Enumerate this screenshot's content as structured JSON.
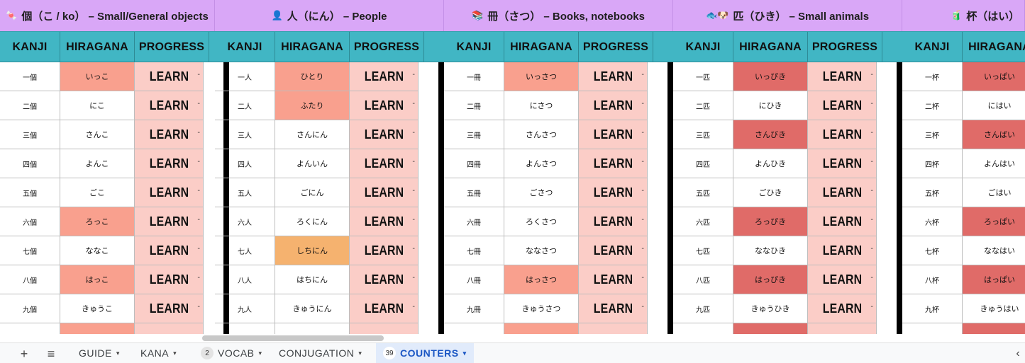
{
  "colors": {
    "section_bg": "#d9a7f7",
    "header_bg": "#41b6c4",
    "progress_bg": "#fbcdc7",
    "hl_salmon": "#f9a08e",
    "hl_red": "#e06b68",
    "hl_orange": "#f5b26f",
    "active_tab": "#1a56c4"
  },
  "sections": [
    {
      "title": "個（こ / ko） – Small/General objects",
      "icon": "candy-icon",
      "icon_glyph": "🍬"
    },
    {
      "title": "人（にん） – People",
      "icon": "person-icon",
      "icon_glyph": "👤"
    },
    {
      "title": "冊（さつ） – Books, notebooks",
      "icon": "books-icon",
      "icon_glyph": "📚"
    },
    {
      "title": "匹（ひき） – Small animals",
      "icon": "fish-dog-icon",
      "icon_glyph": "🐟🐶"
    },
    {
      "title": "杯（はい）",
      "icon": "drink-icon",
      "icon_glyph": "🧃"
    }
  ],
  "headers": {
    "kanji": "KANJI",
    "hiragana": "HIRAGANA",
    "progress": "PROGRESS"
  },
  "learn_label": "LEARN",
  "dash": "-",
  "groups": [
    {
      "rows": [
        {
          "kanji": "一個",
          "hiragana": "いっこ",
          "hl": "salmon"
        },
        {
          "kanji": "二個",
          "hiragana": "にこ",
          "hl": ""
        },
        {
          "kanji": "三個",
          "hiragana": "さんこ",
          "hl": ""
        },
        {
          "kanji": "四個",
          "hiragana": "よんこ",
          "hl": ""
        },
        {
          "kanji": "五個",
          "hiragana": "ごこ",
          "hl": ""
        },
        {
          "kanji": "六個",
          "hiragana": "ろっこ",
          "hl": "salmon"
        },
        {
          "kanji": "七個",
          "hiragana": "ななこ",
          "hl": ""
        },
        {
          "kanji": "八個",
          "hiragana": "はっこ",
          "hl": "salmon"
        },
        {
          "kanji": "九個",
          "hiragana": "きゅうこ",
          "hl": ""
        },
        {
          "kanji": "",
          "hiragana": "",
          "hl": "salmon"
        }
      ]
    },
    {
      "rows": [
        {
          "kanji": "一人",
          "hiragana": "ひとり",
          "hl": "salmon"
        },
        {
          "kanji": "二人",
          "hiragana": "ふたり",
          "hl": "salmon"
        },
        {
          "kanji": "三人",
          "hiragana": "さんにん",
          "hl": ""
        },
        {
          "kanji": "四人",
          "hiragana": "よんいん",
          "hl": ""
        },
        {
          "kanji": "五人",
          "hiragana": "ごにん",
          "hl": ""
        },
        {
          "kanji": "六人",
          "hiragana": "ろくにん",
          "hl": ""
        },
        {
          "kanji": "七人",
          "hiragana": "しちにん",
          "hl": "orange"
        },
        {
          "kanji": "八人",
          "hiragana": "はちにん",
          "hl": ""
        },
        {
          "kanji": "九人",
          "hiragana": "きゅうにん",
          "hl": ""
        },
        {
          "kanji": "",
          "hiragana": "",
          "hl": ""
        }
      ]
    },
    {
      "rows": [
        {
          "kanji": "一冊",
          "hiragana": "いっさつ",
          "hl": "salmon"
        },
        {
          "kanji": "二冊",
          "hiragana": "にさつ",
          "hl": ""
        },
        {
          "kanji": "三冊",
          "hiragana": "さんさつ",
          "hl": ""
        },
        {
          "kanji": "四冊",
          "hiragana": "よんさつ",
          "hl": ""
        },
        {
          "kanji": "五冊",
          "hiragana": "ごさつ",
          "hl": ""
        },
        {
          "kanji": "六冊",
          "hiragana": "ろくさつ",
          "hl": ""
        },
        {
          "kanji": "七冊",
          "hiragana": "ななさつ",
          "hl": ""
        },
        {
          "kanji": "八冊",
          "hiragana": "はっさつ",
          "hl": "salmon"
        },
        {
          "kanji": "九冊",
          "hiragana": "きゅうさつ",
          "hl": ""
        },
        {
          "kanji": "",
          "hiragana": "",
          "hl": "salmon"
        }
      ]
    },
    {
      "rows": [
        {
          "kanji": "一匹",
          "hiragana": "いっぴき",
          "hl": "red"
        },
        {
          "kanji": "二匹",
          "hiragana": "にひき",
          "hl": ""
        },
        {
          "kanji": "三匹",
          "hiragana": "さんびき",
          "hl": "red"
        },
        {
          "kanji": "四匹",
          "hiragana": "よんひき",
          "hl": ""
        },
        {
          "kanji": "五匹",
          "hiragana": "ごひき",
          "hl": ""
        },
        {
          "kanji": "六匹",
          "hiragana": "ろっぴき",
          "hl": "red"
        },
        {
          "kanji": "七匹",
          "hiragana": "ななひき",
          "hl": ""
        },
        {
          "kanji": "八匹",
          "hiragana": "はっぴき",
          "hl": "red"
        },
        {
          "kanji": "九匹",
          "hiragana": "きゅうひき",
          "hl": ""
        },
        {
          "kanji": "",
          "hiragana": "",
          "hl": "red"
        }
      ]
    },
    {
      "rows": [
        {
          "kanji": "一杯",
          "hiragana": "いっぱい",
          "hl": "red"
        },
        {
          "kanji": "二杯",
          "hiragana": "にはい",
          "hl": ""
        },
        {
          "kanji": "三杯",
          "hiragana": "さんばい",
          "hl": "red"
        },
        {
          "kanji": "四杯",
          "hiragana": "よんはい",
          "hl": ""
        },
        {
          "kanji": "五杯",
          "hiragana": "ごはい",
          "hl": ""
        },
        {
          "kanji": "六杯",
          "hiragana": "ろっぱい",
          "hl": "red"
        },
        {
          "kanji": "七杯",
          "hiragana": "ななはい",
          "hl": ""
        },
        {
          "kanji": "八杯",
          "hiragana": "はっぱい",
          "hl": "red"
        },
        {
          "kanji": "九杯",
          "hiragana": "きゅうはい",
          "hl": ""
        },
        {
          "kanji": "",
          "hiragana": "",
          "hl": "red"
        }
      ]
    }
  ],
  "tabbar": {
    "add_icon": "plus-icon",
    "add_glyph": "+",
    "menu_icon": "menu-icon",
    "menu_glyph": "≡",
    "tabs": [
      {
        "label": "GUIDE",
        "badge": "",
        "active": false
      },
      {
        "label": "KANA",
        "badge": "",
        "active": false
      },
      {
        "label": "VOCAB",
        "badge": "2",
        "active": false
      },
      {
        "label": "CONJUGATION",
        "badge": "",
        "active": false
      },
      {
        "label": "COUNTERS",
        "badge": "39",
        "active": true
      }
    ],
    "caret_glyph": "▾",
    "scroll_left_glyph": "‹"
  }
}
